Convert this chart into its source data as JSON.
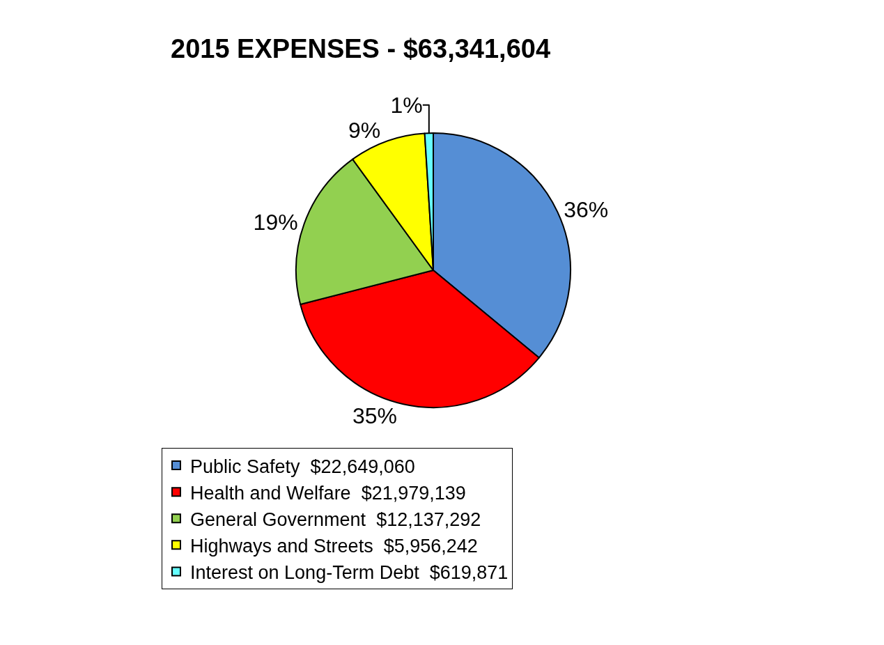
{
  "chart_data": {
    "type": "pie",
    "title": "2015 EXPENSES - $63,341,604",
    "categories": [
      "Public Safety  $22,649,060",
      "Health and Welfare  $21,979,139",
      "General Government  $12,137,292",
      "Highways and Streets  $5,956,242",
      "Interest on Long-Term Debt  $619,871"
    ],
    "values": [
      36,
      35,
      19,
      9,
      1
    ],
    "value_labels": [
      "36%",
      "35%",
      "19%",
      "9%",
      "1%"
    ],
    "colors": [
      "#558ed5",
      "#ff0000",
      "#92d050",
      "#ffff00",
      "#66ffff"
    ],
    "legend": "bottom"
  }
}
